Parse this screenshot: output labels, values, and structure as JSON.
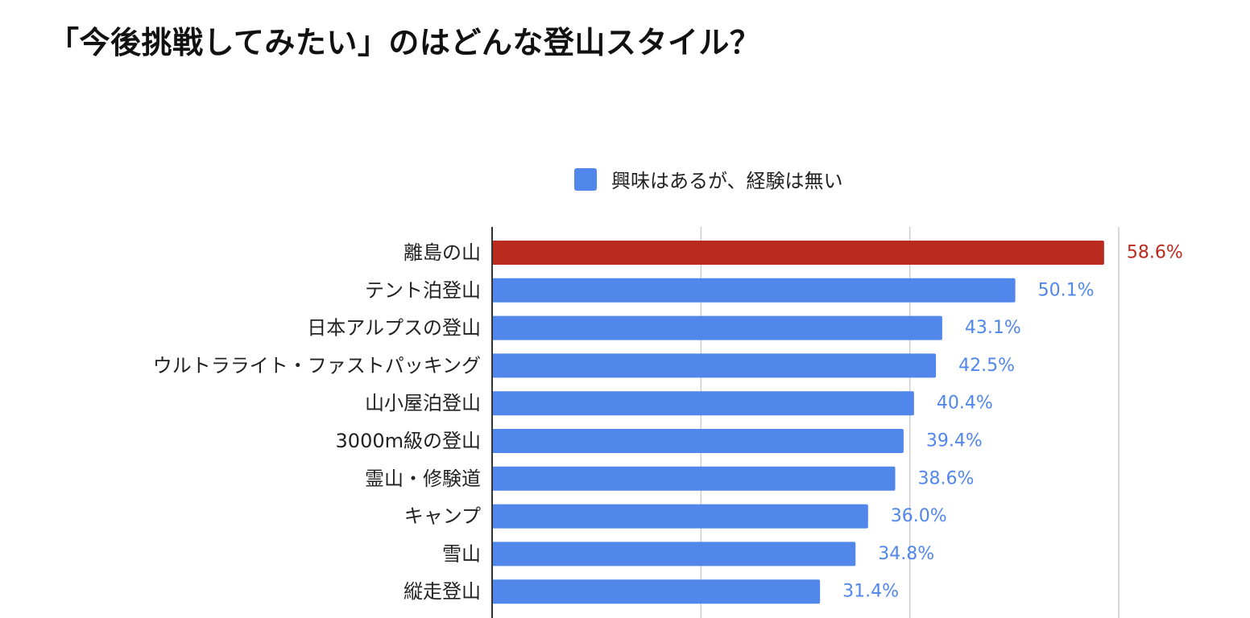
{
  "title": "「今後挑戦してみたい」のはどんな登山スタイル？",
  "legend": {
    "label": "興味はあるが、経験は無い",
    "color": "#5187EA"
  },
  "colors": {
    "series": "#5187EA",
    "highlight": "#BB2A1E",
    "gridline": "#CCCCCC",
    "axis": "#333333"
  },
  "chart_data": {
    "type": "bar",
    "orientation": "horizontal",
    "categories": [
      "離島の山",
      "テント泊登山",
      "日本アルプスの登山",
      "ウルトラライト・ファストパッキング",
      "山小屋泊登山",
      "3000m級の登山",
      "霊山・修験道",
      "キャンプ",
      "雪山",
      "縦走登山"
    ],
    "series": [
      {
        "name": "興味はあるが、経験は無い",
        "values": [
          58.6,
          50.1,
          43.1,
          42.5,
          40.4,
          39.4,
          38.6,
          36.0,
          34.8,
          31.4
        ]
      }
    ],
    "data_labels": [
      "58.6%",
      "50.1%",
      "43.1%",
      "42.5%",
      "40.4%",
      "39.4%",
      "38.6%",
      "36.0%",
      "34.8%",
      "31.4%"
    ],
    "highlight_index": 0,
    "xlim": [
      0,
      60
    ],
    "gridlines_at": [
      0,
      20,
      40,
      60
    ],
    "grid": true,
    "legend_position": "top",
    "xlabel": "",
    "ylabel": ""
  }
}
